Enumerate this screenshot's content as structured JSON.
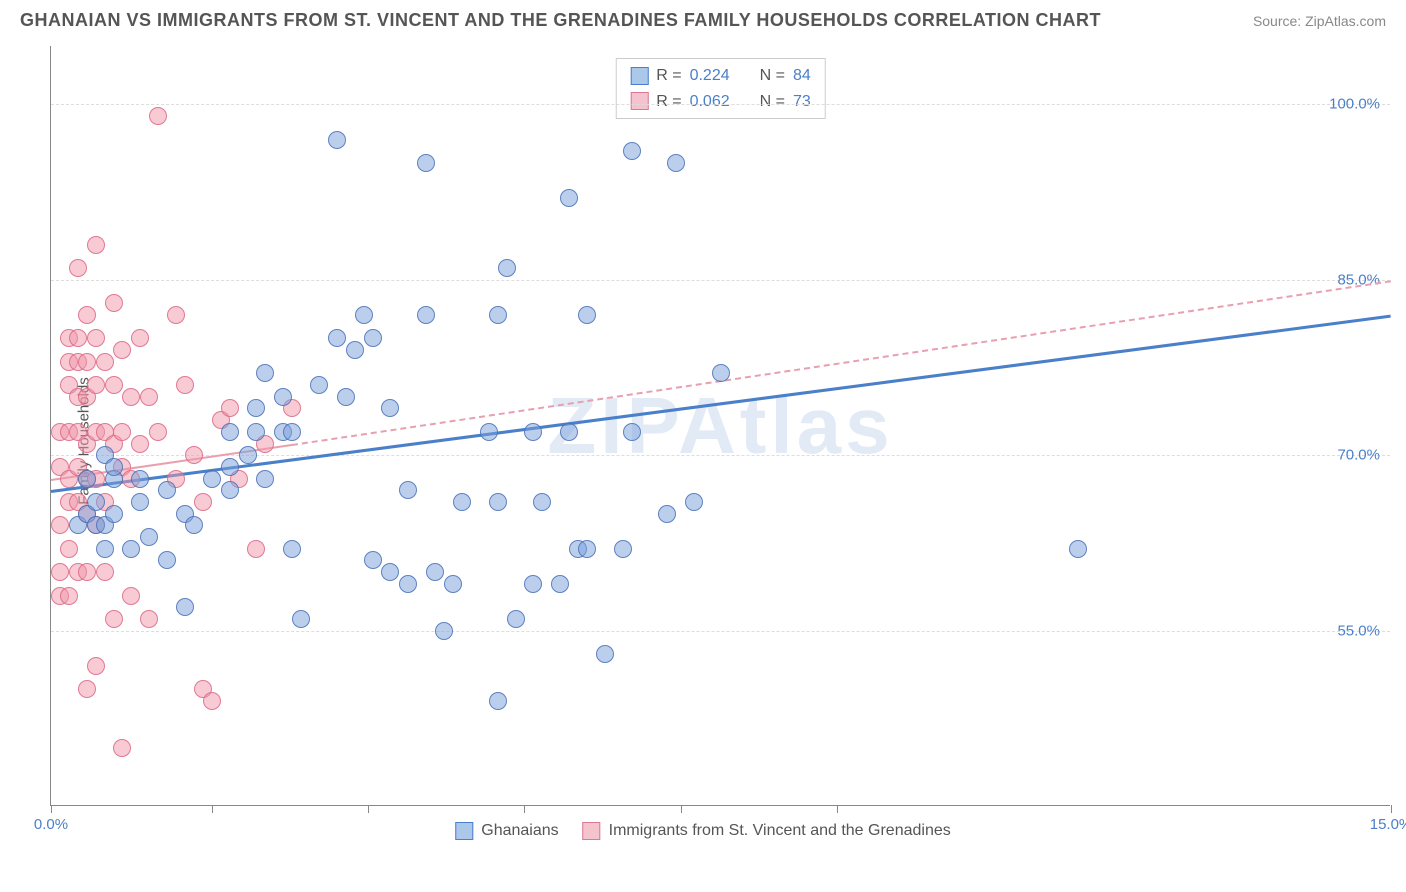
{
  "title": "GHANAIAN VS IMMIGRANTS FROM ST. VINCENT AND THE GRENADINES FAMILY HOUSEHOLDS CORRELATION CHART",
  "source": "Source: ZipAtlas.com",
  "watermark": "ZIPAtlas",
  "ylabel": "Family Households",
  "chart": {
    "type": "scatter",
    "xlim": [
      0,
      15
    ],
    "ylim": [
      40,
      105
    ],
    "yticks": [
      55.0,
      70.0,
      85.0,
      100.0
    ],
    "ytick_labels": [
      "55.0%",
      "70.0%",
      "85.0%",
      "100.0%"
    ],
    "xticks": [
      0,
      1.8,
      3.55,
      5.3,
      7.05,
      8.8,
      15
    ],
    "xtick_labels": [
      "0.0%",
      "",
      "",
      "",
      "",
      "",
      "15.0%"
    ],
    "background_color": "#ffffff",
    "grid_color": "#dddddd",
    "series": [
      {
        "name": "Ghanaians",
        "color_fill": "rgba(120,160,220,0.5)",
        "color_stroke": "rgba(70,110,180,0.8)",
        "marker": "circle",
        "marker_size": 18,
        "r": 0.224,
        "n": 84,
        "trend": {
          "x1": 0,
          "y1": 67,
          "x2": 15,
          "y2": 82,
          "color": "#4a7fc9",
          "width": 3,
          "style": "solid"
        },
        "points": [
          [
            0.3,
            64
          ],
          [
            0.4,
            65
          ],
          [
            0.5,
            64
          ],
          [
            0.6,
            64
          ],
          [
            0.5,
            66
          ],
          [
            0.7,
            65
          ],
          [
            0.9,
            62
          ],
          [
            0.4,
            68
          ],
          [
            0.7,
            68
          ],
          [
            0.6,
            70
          ],
          [
            0.7,
            69
          ],
          [
            0.6,
            62
          ],
          [
            1.0,
            66
          ],
          [
            1.1,
            63
          ],
          [
            1.3,
            61
          ],
          [
            1.0,
            68
          ],
          [
            1.3,
            67
          ],
          [
            1.5,
            65
          ],
          [
            1.6,
            64
          ],
          [
            1.5,
            57
          ],
          [
            1.8,
            68
          ],
          [
            2.0,
            69
          ],
          [
            2.0,
            67
          ],
          [
            2.0,
            72
          ],
          [
            2.2,
            70
          ],
          [
            2.3,
            74
          ],
          [
            2.3,
            72
          ],
          [
            2.4,
            68
          ],
          [
            2.4,
            77
          ],
          [
            2.6,
            72
          ],
          [
            2.6,
            75
          ],
          [
            2.7,
            72
          ],
          [
            2.7,
            62
          ],
          [
            2.8,
            56
          ],
          [
            3.0,
            76
          ],
          [
            3.2,
            97
          ],
          [
            3.2,
            80
          ],
          [
            3.3,
            75
          ],
          [
            3.4,
            79
          ],
          [
            3.5,
            82
          ],
          [
            3.6,
            80
          ],
          [
            3.6,
            61
          ],
          [
            3.8,
            74
          ],
          [
            3.8,
            60
          ],
          [
            4.0,
            59
          ],
          [
            4.0,
            67
          ],
          [
            4.2,
            95
          ],
          [
            4.2,
            82
          ],
          [
            4.3,
            60
          ],
          [
            4.4,
            55
          ],
          [
            4.5,
            59
          ],
          [
            4.6,
            66
          ],
          [
            4.9,
            72
          ],
          [
            5.0,
            49
          ],
          [
            5.0,
            66
          ],
          [
            5.0,
            82
          ],
          [
            5.1,
            86
          ],
          [
            5.2,
            56
          ],
          [
            5.4,
            59
          ],
          [
            5.4,
            72
          ],
          [
            5.5,
            66
          ],
          [
            5.7,
            59
          ],
          [
            5.8,
            72
          ],
          [
            5.8,
            92
          ],
          [
            5.9,
            62
          ],
          [
            6.0,
            62
          ],
          [
            6.0,
            82
          ],
          [
            6.2,
            53
          ],
          [
            6.4,
            62
          ],
          [
            6.5,
            72
          ],
          [
            6.5,
            96
          ],
          [
            6.9,
            65
          ],
          [
            7.0,
            95
          ],
          [
            7.5,
            77
          ],
          [
            7.2,
            66
          ],
          [
            11.5,
            62
          ]
        ]
      },
      {
        "name": "Immigrants from St. Vincent and the Grenadines",
        "color_fill": "rgba(240,150,170,0.5)",
        "color_stroke": "rgba(220,100,130,0.8)",
        "marker": "circle",
        "marker_size": 18,
        "r": 0.062,
        "n": 73,
        "trend_solid": {
          "x1": 0,
          "y1": 68,
          "x2": 2.7,
          "y2": 71,
          "color": "#e8a0b0",
          "width": 2,
          "style": "solid"
        },
        "trend_dash": {
          "x1": 2.7,
          "y1": 71,
          "x2": 15,
          "y2": 85,
          "color": "#e8a0b0",
          "width": 2,
          "style": "dashed"
        },
        "points": [
          [
            0.1,
            69
          ],
          [
            0.1,
            72
          ],
          [
            0.1,
            64
          ],
          [
            0.1,
            60
          ],
          [
            0.1,
            58
          ],
          [
            0.2,
            80
          ],
          [
            0.2,
            78
          ],
          [
            0.2,
            76
          ],
          [
            0.2,
            72
          ],
          [
            0.2,
            68
          ],
          [
            0.2,
            66
          ],
          [
            0.2,
            62
          ],
          [
            0.2,
            58
          ],
          [
            0.3,
            80
          ],
          [
            0.3,
            78
          ],
          [
            0.3,
            75
          ],
          [
            0.3,
            72
          ],
          [
            0.3,
            69
          ],
          [
            0.3,
            66
          ],
          [
            0.3,
            86
          ],
          [
            0.3,
            60
          ],
          [
            0.4,
            82
          ],
          [
            0.4,
            78
          ],
          [
            0.4,
            75
          ],
          [
            0.4,
            71
          ],
          [
            0.4,
            68
          ],
          [
            0.4,
            65
          ],
          [
            0.4,
            60
          ],
          [
            0.4,
            50
          ],
          [
            0.5,
            88
          ],
          [
            0.5,
            80
          ],
          [
            0.5,
            76
          ],
          [
            0.5,
            72
          ],
          [
            0.5,
            68
          ],
          [
            0.5,
            64
          ],
          [
            0.5,
            52
          ],
          [
            0.6,
            78
          ],
          [
            0.6,
            72
          ],
          [
            0.6,
            66
          ],
          [
            0.6,
            60
          ],
          [
            0.7,
            83
          ],
          [
            0.7,
            76
          ],
          [
            0.7,
            71
          ],
          [
            0.7,
            56
          ],
          [
            0.8,
            79
          ],
          [
            0.8,
            72
          ],
          [
            0.8,
            69
          ],
          [
            0.8,
            45
          ],
          [
            0.9,
            75
          ],
          [
            0.9,
            68
          ],
          [
            0.9,
            58
          ],
          [
            1.0,
            80
          ],
          [
            1.0,
            71
          ],
          [
            1.1,
            75
          ],
          [
            1.1,
            56
          ],
          [
            1.2,
            99
          ],
          [
            1.2,
            72
          ],
          [
            1.4,
            82
          ],
          [
            1.4,
            68
          ],
          [
            1.5,
            76
          ],
          [
            1.6,
            70
          ],
          [
            1.7,
            66
          ],
          [
            1.7,
            50
          ],
          [
            1.8,
            49
          ],
          [
            1.9,
            73
          ],
          [
            2.0,
            74
          ],
          [
            2.1,
            68
          ],
          [
            2.3,
            62
          ],
          [
            2.4,
            71
          ],
          [
            2.7,
            74
          ]
        ]
      }
    ],
    "legend_top": [
      {
        "swatch": "blue",
        "r_label": "R =",
        "r_val": "0.224",
        "n_label": "N =",
        "n_val": "84"
      },
      {
        "swatch": "pink",
        "r_label": "R =",
        "r_val": "0.062",
        "n_label": "N =",
        "n_val": "73"
      }
    ],
    "legend_bottom": [
      {
        "swatch": "blue",
        "label": "Ghanaians"
      },
      {
        "swatch": "pink",
        "label": "Immigrants from St. Vincent and the Grenadines"
      }
    ]
  }
}
